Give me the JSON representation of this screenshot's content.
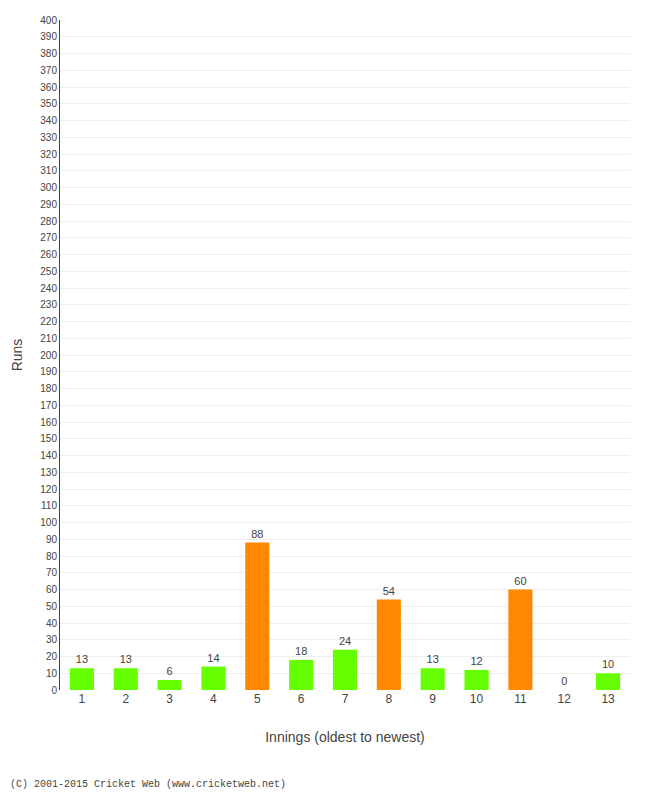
{
  "chart_data": {
    "type": "bar",
    "categories": [
      "1",
      "2",
      "3",
      "4",
      "5",
      "6",
      "7",
      "8",
      "9",
      "10",
      "11",
      "12",
      "13"
    ],
    "values": [
      13,
      13,
      6,
      14,
      88,
      18,
      24,
      54,
      13,
      12,
      60,
      0,
      10
    ],
    "colors": [
      "#66ff00",
      "#66ff00",
      "#66ff00",
      "#66ff00",
      "#ff8800",
      "#66ff00",
      "#66ff00",
      "#ff8800",
      "#66ff00",
      "#66ff00",
      "#ff8800",
      "#66ff00",
      "#66ff00"
    ],
    "xlabel": "Innings (oldest to newest)",
    "ylabel": "Runs",
    "ylim": [
      0,
      400
    ],
    "yticks": [
      0,
      10,
      20,
      30,
      40,
      50,
      60,
      70,
      80,
      90,
      100,
      110,
      120,
      130,
      140,
      150,
      160,
      170,
      180,
      190,
      200,
      210,
      220,
      230,
      240,
      250,
      260,
      270,
      280,
      290,
      300,
      310,
      320,
      330,
      340,
      350,
      360,
      370,
      380,
      390,
      400
    ],
    "grid": true,
    "data_labels": true,
    "annotations": [
      "(C) 2001-2015 Cricket Web (www.cricketweb.net)"
    ]
  }
}
